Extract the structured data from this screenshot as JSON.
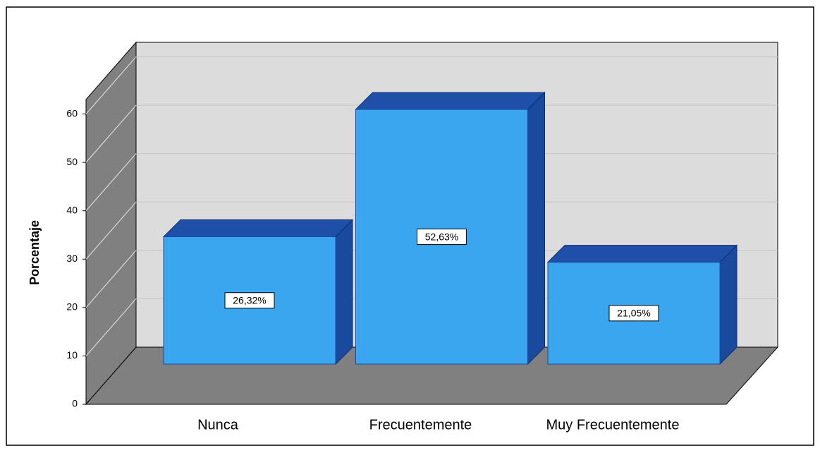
{
  "chart_data": {
    "type": "bar3d",
    "y_label": "Porcentaje",
    "categories": [
      "Nunca",
      "Frecuentemente",
      "Muy Frecuentemente"
    ],
    "values": [
      26.32,
      52.63,
      21.05
    ],
    "value_labels": [
      "26,32%",
      "52,63%",
      "21,05%"
    ],
    "color": "#3aa6f0",
    "ylim": [
      0,
      63
    ],
    "yticks": [
      0,
      10,
      20,
      30,
      40,
      50,
      60
    ],
    "grid": true
  }
}
